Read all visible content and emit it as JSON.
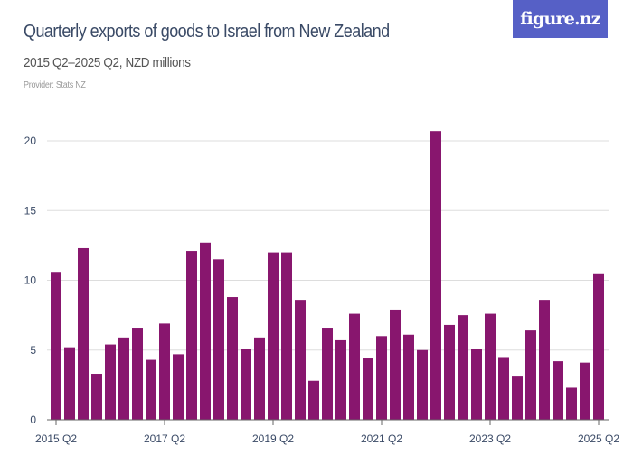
{
  "header": {
    "title": "Quarterly exports of goods to Israel from New Zealand",
    "subtitle": "2015 Q2–2025 Q2, NZD millions",
    "provider": "Provider: Stats NZ",
    "logo_text": "figure.nz"
  },
  "colors": {
    "bar": "#88166e",
    "logo_bg": "#5660c6",
    "grid": "#dddddd",
    "axis": "#666666"
  },
  "chart_data": {
    "type": "bar",
    "title": "Quarterly exports of goods to Israel from New Zealand",
    "subtitle": "2015 Q2–2025 Q2, NZD millions",
    "categories": [
      "2015 Q2",
      "2015 Q3",
      "2015 Q4",
      "2016 Q1",
      "2016 Q2",
      "2016 Q3",
      "2016 Q4",
      "2017 Q1",
      "2017 Q2",
      "2017 Q3",
      "2017 Q4",
      "2018 Q1",
      "2018 Q2",
      "2018 Q3",
      "2018 Q4",
      "2019 Q1",
      "2019 Q2",
      "2019 Q3",
      "2019 Q4",
      "2020 Q1",
      "2020 Q2",
      "2020 Q3",
      "2020 Q4",
      "2021 Q1",
      "2021 Q2",
      "2021 Q3",
      "2021 Q4",
      "2022 Q1",
      "2022 Q2",
      "2022 Q3",
      "2022 Q4",
      "2023 Q1",
      "2023 Q2",
      "2023 Q3",
      "2023 Q4",
      "2024 Q1",
      "2024 Q2",
      "2024 Q3",
      "2024 Q4",
      "2025 Q1",
      "2025 Q2"
    ],
    "values": [
      10.6,
      5.2,
      12.3,
      3.3,
      5.4,
      5.9,
      6.6,
      4.3,
      6.9,
      4.7,
      12.1,
      12.7,
      11.5,
      8.8,
      5.1,
      5.9,
      12.0,
      12.0,
      8.6,
      2.8,
      6.6,
      5.7,
      7.6,
      4.4,
      6.0,
      7.9,
      6.1,
      5.0,
      20.7,
      6.8,
      7.5,
      5.1,
      7.6,
      4.5,
      3.1,
      6.4,
      8.6,
      4.2,
      2.3,
      4.1,
      10.5
    ],
    "x_tick_labels": [
      "2015 Q2",
      "2017 Q2",
      "2019 Q2",
      "2021 Q2",
      "2023 Q2",
      "2025 Q2"
    ],
    "y_tick_labels": [
      "0",
      "5",
      "10",
      "15",
      "20"
    ],
    "xlabel": "",
    "ylabel": "",
    "ylim": [
      0,
      20
    ],
    "grid": true,
    "legend": "none"
  }
}
